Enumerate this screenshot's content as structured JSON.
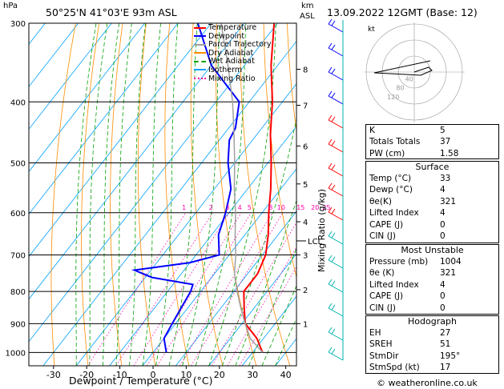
{
  "header": {
    "hpa_label": "hPa",
    "station": "50°25'N  41°03'E  93m  ASL",
    "km_label": "km",
    "asl_label": "ASL",
    "datetime": "13.09.2022  12GMT  (Base: 12)"
  },
  "chart_data": {
    "type": "line",
    "title": "50°25'N  41°03'E  93m  ASL",
    "xlabel": "Dewpoint / Temperature (°C)",
    "ylabel": "hPa",
    "right_axis_label": "Mixing Ratio (g/kg)",
    "xlim": [
      -40,
      45
    ],
    "ylim": [
      1050,
      300
    ],
    "x_ticks": [
      -30,
      -20,
      -10,
      0,
      10,
      20,
      30,
      40
    ],
    "pressure_ticks": [
      300,
      400,
      500,
      600,
      700,
      800,
      900,
      1000
    ],
    "mixing_ratio_labels": [
      "1",
      "2",
      "3",
      "4",
      "5",
      "8",
      "10",
      "15",
      "20",
      "25"
    ],
    "mixing_ratio_values": [
      1,
      2,
      3,
      4,
      5,
      8,
      10,
      15,
      20,
      25
    ],
    "lcl_label": "LCL",
    "km_ticks": [
      "8",
      "7",
      "6",
      "5",
      "4",
      "3",
      "2",
      "1"
    ],
    "km_values": [
      8,
      7,
      6,
      5,
      4,
      3,
      2,
      1
    ],
    "legend": [
      "Temperature",
      "Dewpoint",
      "Parcel Trajectory",
      "Dry Adiabat",
      "Wet Adiabat",
      "Isotherm",
      "Mixing Ratio"
    ],
    "series": [
      {
        "name": "Temperature",
        "color": "#ff0000",
        "p": [
          1000,
          950,
          900,
          850,
          800,
          750,
          700,
          650,
          600,
          550,
          500,
          450,
          400,
          350,
          300
        ],
        "t": [
          33,
          28,
          21,
          17,
          13,
          13,
          11,
          7,
          2,
          -3,
          -9,
          -16,
          -23,
          -32,
          -41
        ]
      },
      {
        "name": "Dewpoint",
        "color": "#0000ff",
        "p": [
          1000,
          950,
          900,
          850,
          800,
          780,
          760,
          740,
          720,
          700,
          650,
          600,
          550,
          500,
          460,
          440,
          400,
          350,
          300
        ],
        "t": [
          4,
          0,
          -1,
          -2,
          -3,
          -4,
          -18,
          -25,
          -10,
          -3,
          -8,
          -11,
          -15,
          -22,
          -27,
          -28,
          -33,
          -50,
          -64
        ]
      },
      {
        "name": "Parcel Trajectory",
        "color": "#a0a0a0",
        "p": [
          1000,
          950,
          900,
          850,
          800,
          750,
          700,
          650,
          600,
          550,
          500,
          450,
          400,
          350,
          300
        ],
        "t": [
          33,
          26,
          21,
          16,
          11,
          6,
          2,
          -3,
          -8,
          -14,
          -20,
          -27,
          -35,
          -45,
          -57
        ]
      }
    ]
  },
  "hodograph": {
    "label": "kt",
    "ring_labels": [
      "40",
      "80",
      "120"
    ]
  },
  "indices": [
    {
      "k": "K",
      "v": "5"
    },
    {
      "k": "Totals Totals",
      "v": "37"
    },
    {
      "k": "PW (cm)",
      "v": "1.58"
    }
  ],
  "surface": {
    "title": "Surface",
    "rows": [
      {
        "k": "Temp (°C)",
        "v": "33"
      },
      {
        "k": "Dewp (°C)",
        "v": "4"
      },
      {
        "k": "θe(K)",
        "v": "321"
      },
      {
        "k": "Lifted Index",
        "v": "4"
      },
      {
        "k": "CAPE (J)",
        "v": "0"
      },
      {
        "k": "CIN (J)",
        "v": "0"
      }
    ]
  },
  "most_unstable": {
    "title": "Most Unstable",
    "rows": [
      {
        "k": "Pressure (mb)",
        "v": "1004"
      },
      {
        "k": "θe (K)",
        "v": "321"
      },
      {
        "k": "Lifted Index",
        "v": "4"
      },
      {
        "k": "CAPE (J)",
        "v": "0"
      },
      {
        "k": "CIN (J)",
        "v": "0"
      }
    ]
  },
  "hodo_table": {
    "title": "Hodograph",
    "rows": [
      {
        "k": "EH",
        "v": "27"
      },
      {
        "k": "SREH",
        "v": "51"
      },
      {
        "k": "StmDir",
        "v": "195°"
      },
      {
        "k": "StmSpd (kt)",
        "v": "17"
      }
    ]
  },
  "footer": {
    "copyright": "© weatheronline.co.uk"
  },
  "colors": {
    "dry_adiabat": "#ff8c00",
    "wet_adiabat": "#00a000",
    "isotherm": "#00a0ff",
    "mixing_ratio": "#ff00aa",
    "wind": "#00b0b0"
  }
}
